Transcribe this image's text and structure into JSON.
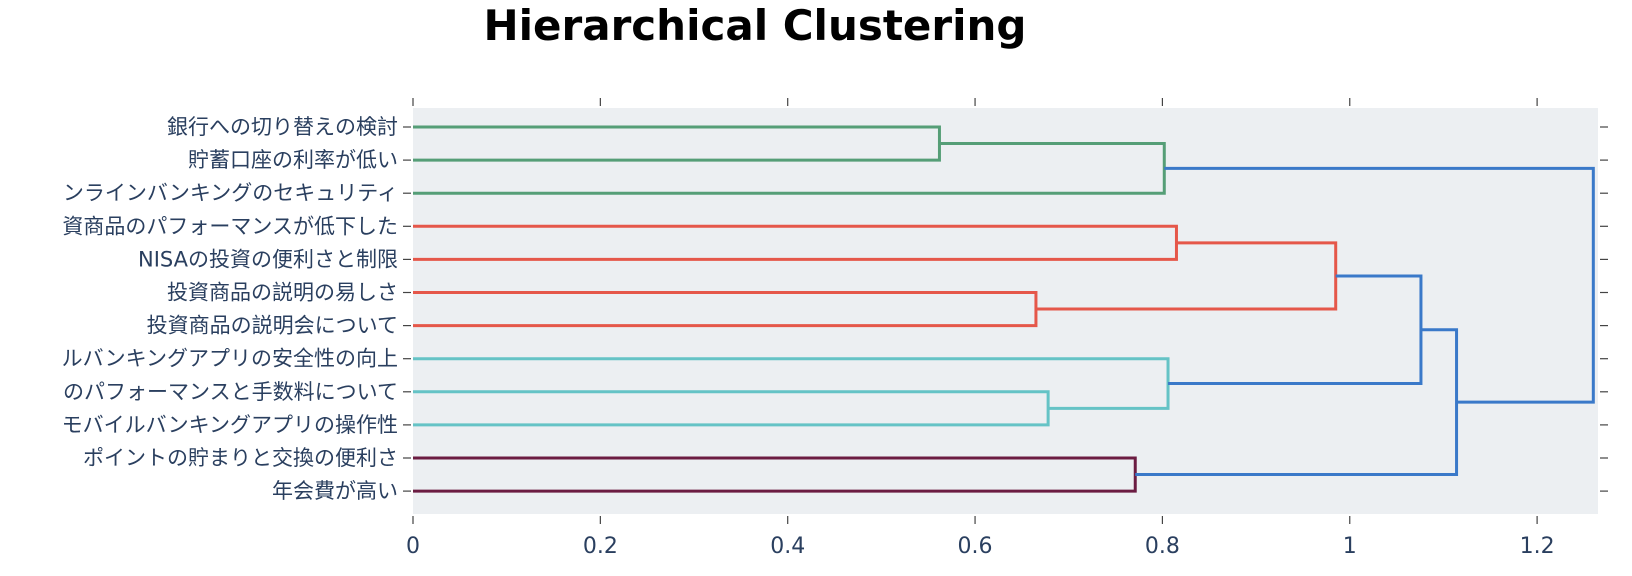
{
  "chart_data": {
    "type": "dendrogram",
    "title": "Hierarchical Clustering",
    "orientation": "horizontal",
    "xlim": [
      0,
      1.265
    ],
    "x_ticks": [
      0,
      0.2,
      0.4,
      0.6,
      0.8,
      1,
      1.2
    ],
    "x_tick_labels": [
      "0",
      "0.2",
      "0.4",
      "0.6",
      "0.8",
      "1",
      "1.2"
    ],
    "leaves": [
      "銀行への切り替えの検討",
      "貯蓄口座の利率が低い",
      "ンラインバンキングのセキュリティ",
      "資商品のパフォーマンスが低下した",
      "NISAの投資の便利さと制限",
      "投資商品の説明の易しさ",
      "投資商品の説明会について",
      "ルバンキングアプリの安全性の向上",
      "のパフォーマンスと手数料について",
      "モバイルバンキングアプリの操作性",
      "ポイントの貯まりと交換の便利さ",
      "年会費が高い"
    ],
    "colors": {
      "plot_bg": "#eceff2",
      "green": "#559e77",
      "red": "#e5574a",
      "teal": "#65c3c6",
      "maroon": "#6b1c42",
      "blue": "#3a79c9",
      "axis_text": "#2a3f5f"
    },
    "links": [
      {
        "a": 0,
        "b": 1,
        "height": 0.562,
        "color": "green"
      },
      {
        "a": "L1",
        "b": 2,
        "height": 0.802,
        "color": "green"
      },
      {
        "a": 3,
        "b": 4,
        "height": 0.815,
        "color": "red"
      },
      {
        "a": 5,
        "b": 6,
        "height": 0.665,
        "color": "red"
      },
      {
        "a": "L3",
        "b": "L4",
        "height": 0.985,
        "color": "red"
      },
      {
        "a": 8,
        "b": 9,
        "height": 0.678,
        "color": "teal"
      },
      {
        "a": 7,
        "b": "L6",
        "height": 0.806,
        "color": "teal"
      },
      {
        "a": 10,
        "b": 11,
        "height": 0.771,
        "color": "maroon"
      },
      {
        "a": "L5",
        "b": "L7",
        "height": 1.076,
        "color": "blue"
      },
      {
        "a": "L9",
        "b": "L8",
        "height": 1.114,
        "color": "blue"
      },
      {
        "a": "L2",
        "b": "L10",
        "height": 1.26,
        "color": "blue"
      }
    ]
  }
}
